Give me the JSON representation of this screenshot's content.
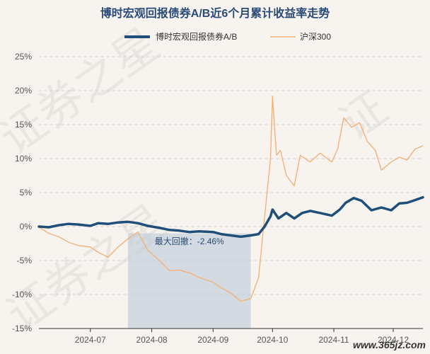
{
  "chart_data": {
    "type": "line",
    "title": "博时宏观回报债券A/B近6个月累计收益率走势",
    "ylim": [
      -15,
      25
    ],
    "yticks": [
      -15,
      -10,
      -5,
      0,
      5,
      10,
      15,
      20,
      25
    ],
    "ytick_labels": [
      "-15%",
      "-10%",
      "-5%",
      "0%",
      "5%",
      "10%",
      "15%",
      "20%",
      "25%"
    ],
    "x_range": [
      "2024-06-05",
      "2024-12-16"
    ],
    "xticks": [
      "2024-07-01",
      "2024-08-01",
      "2024-09-01",
      "2024-10-01",
      "2024-11-01",
      "2024-12-01"
    ],
    "xtick_labels": [
      "2024-07",
      "2024-08",
      "2024-09",
      "2024-10",
      "2024-11",
      "2024-12"
    ],
    "grid": true,
    "legend_position": "top-center",
    "series": [
      {
        "name": "博时宏观回报债券A/B",
        "color": "#1f4e79",
        "points": [
          [
            "2024-06-05",
            0.0
          ],
          [
            "2024-06-10",
            -0.1
          ],
          [
            "2024-06-15",
            0.2
          ],
          [
            "2024-06-20",
            0.4
          ],
          [
            "2024-06-25",
            0.3
          ],
          [
            "2024-07-01",
            0.1
          ],
          [
            "2024-07-05",
            0.5
          ],
          [
            "2024-07-10",
            0.4
          ],
          [
            "2024-07-15",
            0.6
          ],
          [
            "2024-07-20",
            0.7
          ],
          [
            "2024-07-25",
            0.5
          ],
          [
            "2024-07-30",
            0.1
          ],
          [
            "2024-08-05",
            -0.2
          ],
          [
            "2024-08-10",
            -0.5
          ],
          [
            "2024-08-15",
            -0.6
          ],
          [
            "2024-08-20",
            -0.8
          ],
          [
            "2024-08-25",
            -0.7
          ],
          [
            "2024-09-01",
            -0.8
          ],
          [
            "2024-09-05",
            -1.1
          ],
          [
            "2024-09-10",
            -1.3
          ],
          [
            "2024-09-15",
            -1.5
          ],
          [
            "2024-09-20",
            -1.3
          ],
          [
            "2024-09-24",
            -1.1
          ],
          [
            "2024-09-27",
            0.0
          ],
          [
            "2024-09-30",
            1.5
          ],
          [
            "2024-10-01",
            2.5
          ],
          [
            "2024-10-04",
            1.2
          ],
          [
            "2024-10-08",
            2.0
          ],
          [
            "2024-10-12",
            1.2
          ],
          [
            "2024-10-16",
            2.0
          ],
          [
            "2024-10-20",
            2.3
          ],
          [
            "2024-10-25",
            2.0
          ],
          [
            "2024-10-31",
            1.6
          ],
          [
            "2024-11-04",
            2.5
          ],
          [
            "2024-11-07",
            3.5
          ],
          [
            "2024-11-11",
            4.2
          ],
          [
            "2024-11-15",
            3.8
          ],
          [
            "2024-11-20",
            2.4
          ],
          [
            "2024-11-25",
            2.8
          ],
          [
            "2024-11-30",
            2.4
          ],
          [
            "2024-12-04",
            3.4
          ],
          [
            "2024-12-08",
            3.5
          ],
          [
            "2024-12-12",
            3.9
          ],
          [
            "2024-12-16",
            4.3
          ]
        ]
      },
      {
        "name": "沪深300",
        "color": "#f2b27a",
        "points": [
          [
            "2024-06-05",
            -0.1
          ],
          [
            "2024-06-10",
            -1.0
          ],
          [
            "2024-06-15",
            -1.5
          ],
          [
            "2024-06-20",
            -2.3
          ],
          [
            "2024-06-25",
            -2.8
          ],
          [
            "2024-07-01",
            -3.0
          ],
          [
            "2024-07-05",
            -3.8
          ],
          [
            "2024-07-10",
            -4.5
          ],
          [
            "2024-07-15",
            -3.0
          ],
          [
            "2024-07-20",
            -1.8
          ],
          [
            "2024-07-25",
            -0.8
          ],
          [
            "2024-07-30",
            -3.5
          ],
          [
            "2024-08-05",
            -5.0
          ],
          [
            "2024-08-10",
            -6.5
          ],
          [
            "2024-08-15",
            -6.4
          ],
          [
            "2024-08-20",
            -6.8
          ],
          [
            "2024-08-25",
            -7.5
          ],
          [
            "2024-09-01",
            -8.2
          ],
          [
            "2024-09-05",
            -9.0
          ],
          [
            "2024-09-10",
            -9.8
          ],
          [
            "2024-09-15",
            -11.0
          ],
          [
            "2024-09-20",
            -10.6
          ],
          [
            "2024-09-24",
            -7.5
          ],
          [
            "2024-09-26",
            -1.5
          ],
          [
            "2024-09-30",
            10.0
          ],
          [
            "2024-10-01",
            19.2
          ],
          [
            "2024-10-03",
            10.5
          ],
          [
            "2024-10-05",
            11.2
          ],
          [
            "2024-10-08",
            7.5
          ],
          [
            "2024-10-12",
            6.0
          ],
          [
            "2024-10-15",
            10.5
          ],
          [
            "2024-10-20",
            9.5
          ],
          [
            "2024-10-25",
            10.8
          ],
          [
            "2024-10-31",
            9.5
          ],
          [
            "2024-11-03",
            11.5
          ],
          [
            "2024-11-06",
            16.0
          ],
          [
            "2024-11-10",
            14.6
          ],
          [
            "2024-11-14",
            15.3
          ],
          [
            "2024-11-18",
            12.5
          ],
          [
            "2024-11-22",
            11.2
          ],
          [
            "2024-11-25",
            8.3
          ],
          [
            "2024-11-30",
            9.5
          ],
          [
            "2024-12-04",
            10.2
          ],
          [
            "2024-12-08",
            9.8
          ],
          [
            "2024-12-12",
            11.4
          ],
          [
            "2024-12-16",
            11.9
          ]
        ]
      }
    ],
    "drawdown": {
      "label": "最大回撤：-2.46%",
      "start": "2024-07-20",
      "end": "2024-09-20",
      "color": "#b7c4d6"
    }
  },
  "watermarks": [
    "证券之星",
    "证券之星",
    "证"
  ],
  "site_watermark": "www.365jz.com"
}
